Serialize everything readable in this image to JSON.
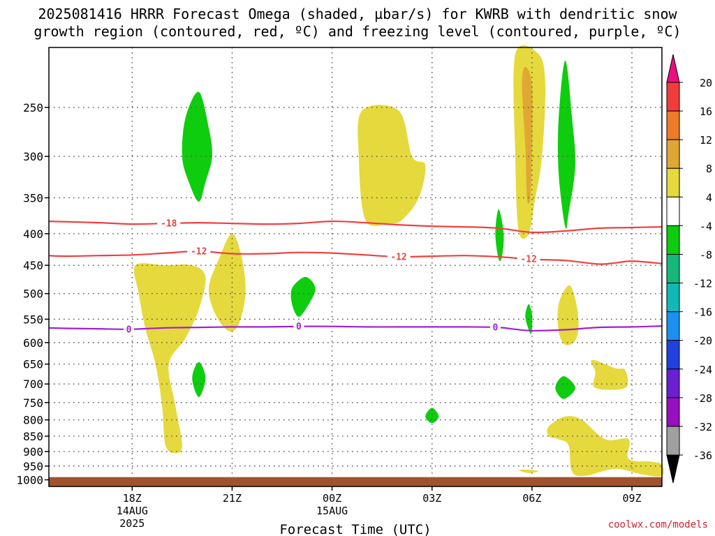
{
  "title_line1": "2025081416 HRRR Forecast Omega (shaded, µbar/s) for KWRB with dendritic snow",
  "title_line2": "growth region (contoured, red, ºC) and freezing level (contoured, purple, ºC)",
  "credit": "coolwx.com/models",
  "chart_data": {
    "type": "heatmap",
    "title": "2025081416 HRRR Forecast Omega (shaded, µbar/s) for KWRB with dendritic snow growth region (contoured, red, ºC) and freezing level (contoured, purple, ºC)",
    "xlabel": "Forecast Time (UTC)",
    "ylabel": "",
    "x_hour_range": [
      15.5,
      33.9
    ],
    "x_axis_hours_from_14AUG_00Z": true,
    "y_pressure_range_hPa": [
      200,
      1025
    ],
    "y_scale": "log",
    "y_ticks": [
      250,
      300,
      350,
      400,
      450,
      500,
      550,
      600,
      650,
      700,
      750,
      800,
      850,
      900,
      950,
      1000
    ],
    "x_ticks": [
      {
        "hour": 18,
        "label": "18Z",
        "sub1": "14AUG",
        "sub2": "2025"
      },
      {
        "hour": 21,
        "label": "21Z",
        "sub1": "",
        "sub2": ""
      },
      {
        "hour": 24,
        "label": "00Z",
        "sub1": "15AUG",
        "sub2": ""
      },
      {
        "hour": 27,
        "label": "03Z",
        "sub1": "",
        "sub2": ""
      },
      {
        "hour": 30,
        "label": "06Z",
        "sub1": "",
        "sub2": ""
      },
      {
        "hour": 33,
        "label": "09Z",
        "sub1": "",
        "sub2": ""
      }
    ],
    "grid": true,
    "ground_color": "#a0522d",
    "colorbar": {
      "colors": [
        "#ec0e7e",
        "#f03c3c",
        "#ee7b27",
        "#e0a832",
        "#e5d93d",
        "#ffffff",
        "#0ecc0e",
        "#14b878",
        "#12b8b8",
        "#1a90f0",
        "#2040e0",
        "#6a20d0",
        "#9810c0",
        "#a0a0a0",
        "#000000"
      ],
      "labels": [
        "20",
        "16",
        "12",
        "8",
        "4",
        "-4",
        "-8",
        "-12",
        "-16",
        "-20",
        "-24",
        "-28",
        "-32",
        "-36"
      ],
      "label_boundaries": [
        20,
        16,
        12,
        8,
        4,
        -4,
        -8,
        -12,
        -16,
        -20,
        -24,
        -28,
        -32,
        -36
      ]
    },
    "omega_regions": [
      {
        "value": "4 to 8",
        "color": "#e5d93d",
        "points": [
          [
            19.0,
            450
          ],
          [
            19.8,
            450
          ],
          [
            20.2,
            470
          ],
          [
            20.0,
            530
          ],
          [
            19.6,
            590
          ],
          [
            19.1,
            650
          ],
          [
            19.3,
            760
          ],
          [
            19.5,
            880
          ],
          [
            19.3,
            905
          ],
          [
            19.0,
            880
          ],
          [
            18.9,
            760
          ],
          [
            18.7,
            650
          ],
          [
            18.4,
            570
          ],
          [
            18.2,
            500
          ],
          [
            18.1,
            450
          ]
        ]
      },
      {
        "value": "4 to 8",
        "color": "#e5d93d",
        "points": [
          [
            21.0,
            400
          ],
          [
            21.3,
            440
          ],
          [
            21.4,
            500
          ],
          [
            21.2,
            560
          ],
          [
            20.9,
            575
          ],
          [
            20.5,
            540
          ],
          [
            20.3,
            490
          ],
          [
            20.6,
            440
          ]
        ]
      },
      {
        "value": "4 to 8",
        "color": "#e5d93d",
        "points": [
          [
            24.9,
            253
          ],
          [
            26.0,
            253
          ],
          [
            26.4,
            300
          ],
          [
            26.8,
            310
          ],
          [
            26.6,
            350
          ],
          [
            26.1,
            380
          ],
          [
            25.7,
            385
          ],
          [
            25.0,
            380
          ],
          [
            24.8,
            300
          ]
        ]
      },
      {
        "value": "4 to 8",
        "color": "#e5d93d",
        "points": [
          [
            29.5,
            205
          ],
          [
            30.2,
            205
          ],
          [
            30.4,
            230
          ],
          [
            30.3,
            300
          ],
          [
            30.1,
            350
          ],
          [
            29.9,
            400
          ],
          [
            29.6,
            395
          ],
          [
            29.5,
            300
          ]
        ]
      },
      {
        "value": "4 to 8",
        "color": "#e5d93d",
        "points": [
          [
            31.1,
            485
          ],
          [
            31.3,
            510
          ],
          [
            31.4,
            560
          ],
          [
            31.3,
            595
          ],
          [
            31.0,
            605
          ],
          [
            30.8,
            575
          ],
          [
            30.8,
            520
          ]
        ]
      },
      {
        "value": "4 to 8",
        "color": "#e5d93d",
        "points": [
          [
            31.8,
            640
          ],
          [
            32.5,
            660
          ],
          [
            32.8,
            665
          ],
          [
            32.8,
            710
          ],
          [
            31.9,
            710
          ],
          [
            31.9,
            670
          ]
        ]
      },
      {
        "value": "4 to 8",
        "color": "#e5d93d",
        "points": [
          [
            30.5,
            820
          ],
          [
            31.0,
            790
          ],
          [
            31.5,
            800
          ],
          [
            32.2,
            860
          ],
          [
            32.9,
            860
          ],
          [
            32.9,
            925
          ],
          [
            33.6,
            935
          ],
          [
            33.9,
            945
          ],
          [
            33.9,
            985
          ],
          [
            33.3,
            980
          ],
          [
            32.5,
            960
          ],
          [
            31.6,
            985
          ],
          [
            31.2,
            970
          ],
          [
            31.1,
            880
          ],
          [
            30.8,
            860
          ],
          [
            30.5,
            850
          ]
        ]
      },
      {
        "value": "4 to 8",
        "color": "#e5d93d",
        "points": [
          [
            29.6,
            965
          ],
          [
            29.9,
            963
          ],
          [
            30.2,
            968
          ],
          [
            29.9,
            975
          ]
        ]
      },
      {
        "value": "8 to 12",
        "color": "#e0a832",
        "points": [
          [
            29.8,
            215
          ],
          [
            30.0,
            230
          ],
          [
            30.0,
            290
          ],
          [
            29.95,
            350
          ],
          [
            29.85,
            350
          ],
          [
            29.8,
            290
          ],
          [
            29.7,
            230
          ]
        ]
      },
      {
        "value": "-8 to -4",
        "color": "#0ecc0e",
        "points": [
          [
            20.0,
            236
          ],
          [
            20.3,
            270
          ],
          [
            20.4,
            300
          ],
          [
            20.2,
            330
          ],
          [
            20.0,
            355
          ],
          [
            19.7,
            330
          ],
          [
            19.5,
            300
          ],
          [
            19.6,
            260
          ]
        ]
      },
      {
        "value": "-8 to -4",
        "color": "#0ecc0e",
        "points": [
          [
            23.2,
            470
          ],
          [
            23.5,
            490
          ],
          [
            23.3,
            520
          ],
          [
            23.0,
            545
          ],
          [
            22.8,
            520
          ],
          [
            22.8,
            490
          ]
        ]
      },
      {
        "value": "-8 to -4",
        "color": "#0ecc0e",
        "points": [
          [
            20.0,
            645
          ],
          [
            20.2,
            685
          ],
          [
            20.0,
            735
          ],
          [
            19.8,
            685
          ]
        ]
      },
      {
        "value": "-8 to -4",
        "color": "#0ecc0e",
        "points": [
          [
            27.0,
            765
          ],
          [
            27.2,
            790
          ],
          [
            27.0,
            810
          ],
          [
            26.8,
            790
          ]
        ]
      },
      {
        "value": "-8 to -4",
        "color": "#0ecc0e",
        "points": [
          [
            29.0,
            365
          ],
          [
            29.15,
            400
          ],
          [
            29.1,
            435
          ],
          [
            29.0,
            440
          ],
          [
            28.9,
            400
          ]
        ]
      },
      {
        "value": "-8 to -4",
        "color": "#0ecc0e",
        "points": [
          [
            31.0,
            210
          ],
          [
            31.2,
            260
          ],
          [
            31.3,
            310
          ],
          [
            31.1,
            370
          ],
          [
            31.0,
            390
          ],
          [
            30.8,
            320
          ],
          [
            30.8,
            260
          ]
        ]
      },
      {
        "value": "-8 to -4",
        "color": "#0ecc0e",
        "points": [
          [
            29.9,
            520
          ],
          [
            30.0,
            540
          ],
          [
            30.0,
            570
          ],
          [
            29.95,
            580
          ],
          [
            29.8,
            545
          ]
        ]
      },
      {
        "value": "-8 to -4",
        "color": "#0ecc0e",
        "points": [
          [
            30.95,
            680
          ],
          [
            31.3,
            710
          ],
          [
            30.95,
            740
          ],
          [
            30.7,
            710
          ]
        ]
      }
    ],
    "contours": [
      {
        "level": "-18",
        "color": "#f04040",
        "label_hours": [
          19.1
        ],
        "points": [
          [
            15.5,
            382
          ],
          [
            17,
            384
          ],
          [
            18,
            386
          ],
          [
            19.0,
            385
          ],
          [
            20,
            384
          ],
          [
            21,
            385
          ],
          [
            22,
            386
          ],
          [
            23,
            385
          ],
          [
            24,
            382
          ],
          [
            25,
            384
          ],
          [
            26,
            387
          ],
          [
            27,
            389
          ],
          [
            28,
            390
          ],
          [
            29,
            392
          ],
          [
            30,
            398
          ],
          [
            31,
            396
          ],
          [
            32,
            392
          ],
          [
            33,
            391
          ],
          [
            33.9,
            390
          ]
        ]
      },
      {
        "level": "-12",
        "color": "#f04040",
        "label_hours": [
          20.0,
          26.0,
          29.9
        ],
        "points": [
          [
            15.5,
            434
          ],
          [
            16,
            435
          ],
          [
            17,
            434
          ],
          [
            18,
            433
          ],
          [
            19,
            430
          ],
          [
            20,
            427
          ],
          [
            21,
            431
          ],
          [
            22,
            431
          ],
          [
            23,
            429
          ],
          [
            24,
            430
          ],
          [
            25,
            433
          ],
          [
            26,
            436
          ],
          [
            27,
            435
          ],
          [
            28,
            434
          ],
          [
            29,
            436
          ],
          [
            30,
            440
          ],
          [
            31,
            442
          ],
          [
            32,
            448
          ],
          [
            32.5,
            446
          ],
          [
            33,
            443
          ],
          [
            33.9,
            447
          ]
        ]
      },
      {
        "level": "0",
        "color": "#a020d0",
        "label_hours": [
          17.9,
          23.0,
          28.9
        ],
        "points": [
          [
            15.5,
            568
          ],
          [
            16,
            569
          ],
          [
            17,
            570
          ],
          [
            17.9,
            571
          ],
          [
            19,
            568
          ],
          [
            20,
            567
          ],
          [
            21,
            566
          ],
          [
            22,
            566
          ],
          [
            23,
            565
          ],
          [
            24,
            565
          ],
          [
            25,
            566
          ],
          [
            26,
            566
          ],
          [
            27,
            566
          ],
          [
            28,
            566
          ],
          [
            29,
            567
          ],
          [
            29.5,
            571
          ],
          [
            30,
            574
          ],
          [
            31,
            572
          ],
          [
            32,
            567
          ],
          [
            33,
            566
          ],
          [
            33.9,
            564
          ]
        ]
      }
    ]
  }
}
